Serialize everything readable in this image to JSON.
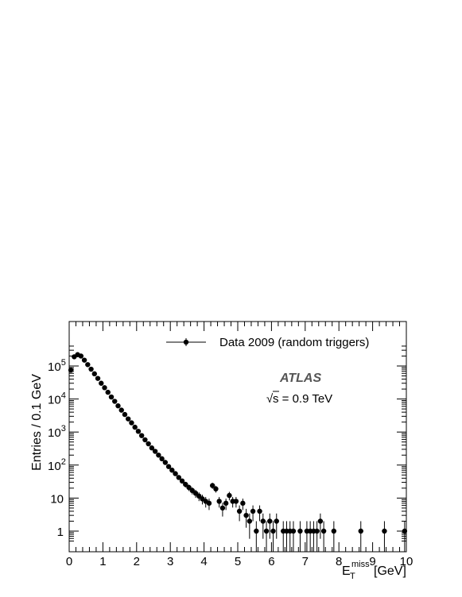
{
  "chart_data": {
    "type": "scatter",
    "xlabel": "E",
    "xlabel_sub": "T",
    "xlabel_sup": "miss",
    "xlabel_unit": "[GeV]",
    "ylabel": "Entries / 0.1 GeV",
    "xlim": [
      0,
      10
    ],
    "ylim": [
      0.5,
      400000
    ],
    "y_scale": "log",
    "grid": false,
    "legend_position": "top-right",
    "x_ticks": [
      0,
      1,
      2,
      3,
      4,
      5,
      6,
      7,
      8,
      9,
      10
    ],
    "y_ticks": [
      {
        "value": 1,
        "label": "1"
      },
      {
        "value": 10,
        "label": "10"
      },
      {
        "value": 100,
        "label": "10",
        "exp": "2"
      },
      {
        "value": 1000,
        "label": "10",
        "exp": "3"
      },
      {
        "value": 10000,
        "label": "10",
        "exp": "4"
      },
      {
        "value": 100000,
        "label": "10",
        "exp": "5"
      }
    ],
    "series": [
      {
        "name": "Data 2009 (random triggers)",
        "color": "#000000",
        "x": [
          0.05,
          0.15,
          0.25,
          0.35,
          0.45,
          0.55,
          0.65,
          0.75,
          0.85,
          0.95,
          1.05,
          1.15,
          1.25,
          1.35,
          1.45,
          1.55,
          1.65,
          1.75,
          1.85,
          1.95,
          2.05,
          2.15,
          2.25,
          2.35,
          2.45,
          2.55,
          2.65,
          2.75,
          2.85,
          2.95,
          3.05,
          3.15,
          3.25,
          3.35,
          3.45,
          3.55,
          3.65,
          3.75,
          3.85,
          3.95,
          4.05,
          4.15,
          4.25,
          4.35,
          4.45,
          4.55,
          4.65,
          4.75,
          4.85,
          4.95,
          5.05,
          5.15,
          5.25,
          5.35,
          5.45,
          5.55,
          5.65,
          5.75,
          5.85,
          5.95,
          6.05,
          6.15,
          6.35,
          6.45,
          6.55,
          6.65,
          6.85,
          7.05,
          7.15,
          7.25,
          7.35,
          7.45,
          7.55,
          7.85,
          8.65,
          9.35,
          9.95
        ],
        "y": [
          75000,
          190000,
          220000,
          200000,
          150000,
          110000,
          80000,
          58000,
          42000,
          30000,
          22000,
          16000,
          11500,
          8500,
          6200,
          4600,
          3400,
          2500,
          1900,
          1400,
          1050,
          780,
          580,
          440,
          330,
          260,
          200,
          155,
          120,
          90,
          70,
          55,
          42,
          33,
          26,
          21,
          17,
          14,
          11.5,
          9.5,
          8,
          7,
          24,
          19,
          8,
          5,
          7,
          12,
          8,
          8,
          4,
          7,
          3,
          2,
          4,
          1,
          4,
          2,
          1,
          2,
          1,
          2,
          1,
          1,
          1,
          1,
          1,
          1,
          1,
          1,
          1,
          2,
          1,
          1,
          1,
          1,
          1
        ]
      }
    ],
    "annotations": {
      "experiment": "ATLAS",
      "energy": "s = 0.9 TeV",
      "energy_root": "√"
    }
  }
}
